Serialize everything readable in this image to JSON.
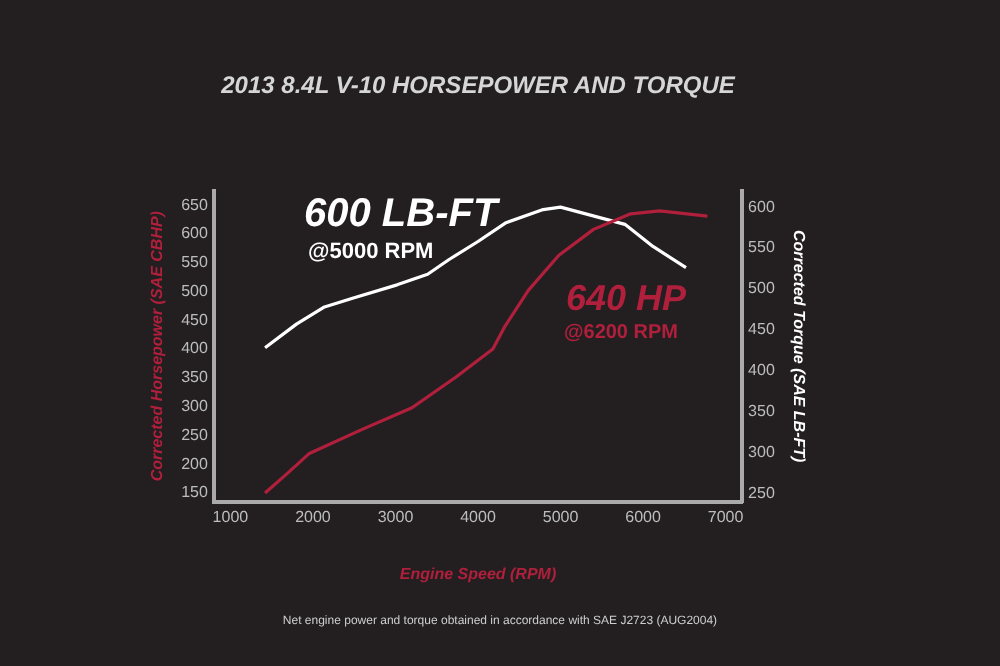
{
  "chart_data": {
    "type": "line",
    "title": "2013 8.4L V-10 HORSEPOWER AND TORQUE",
    "xlabel": "Engine Speed (RPM)",
    "ylabel": "Corrected Horsepower (SAE CBHP)",
    "y2label": "Corrected Torque (SAE LB-FT)",
    "series": [
      {
        "color": "#b01f3c",
        "x": [
          1420,
          1690,
          1950,
          2590,
          3200,
          3730,
          4180,
          4320,
          4610,
          4980,
          5400,
          5850,
          6200,
          6780
        ],
        "values": [
          150,
          184,
          218,
          260,
          298,
          351,
          400,
          438,
          502,
          563,
          608,
          635,
          640,
          631
        ]
      },
      {
        "color": "#ffffff",
        "axis": "y2",
        "x": [
          1420,
          1800,
          2140,
          2490,
          3020,
          3390,
          3650,
          4000,
          4340,
          4790,
          5000,
          5780,
          6120,
          6520
        ],
        "values": [
          428,
          457,
          478,
          489,
          505,
          518,
          536,
          558,
          581,
          597,
          600,
          579,
          552,
          526
        ]
      }
    ],
    "xlim": [
      800,
      7200
    ],
    "xticks": [
      1000,
      2000,
      3000,
      4000,
      5000,
      6000,
      7000
    ],
    "ylim": [
      135,
      675
    ],
    "yticks": [
      150,
      200,
      250,
      300,
      350,
      400,
      450,
      500,
      550,
      600,
      650
    ],
    "y2lim": [
      240,
      620
    ],
    "y2ticks": [
      250,
      300,
      350,
      400,
      450,
      500,
      550,
      600
    ],
    "grid": false,
    "legend": false,
    "marker": "none",
    "line_style": "solid",
    "annotations": [
      "600 LB-FT",
      "@5000 RPM",
      "640 HP",
      "@6200 RPM",
      "Net engine power and torque obtained in accordance with SAE J2723 (AUG2004)"
    ]
  }
}
